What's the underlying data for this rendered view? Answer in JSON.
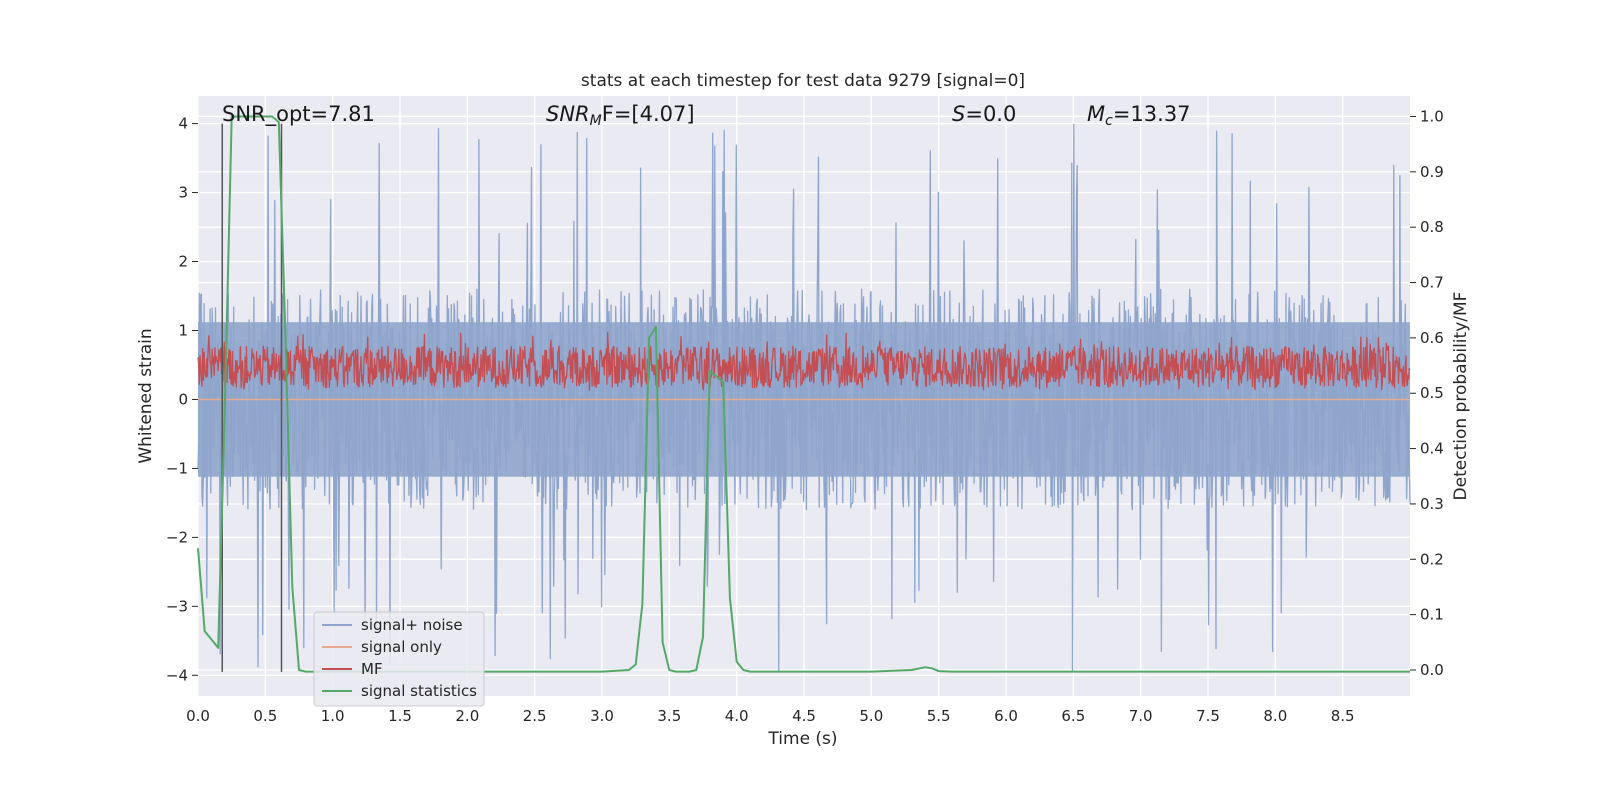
{
  "chart_data": {
    "type": "line",
    "title": "stats at each timestep for test data 9279 [signal=0]",
    "xlabel": "Time (s)",
    "ylabel": "Whitened strain",
    "y2label": "Detection probability/MF",
    "xlim": [
      0.0,
      9.0
    ],
    "ylim": [
      -4.3,
      4.4
    ],
    "y2lim": [
      -0.047,
      1.037
    ],
    "grid": true,
    "xticks": [
      "0.0",
      "0.5",
      "1.0",
      "1.5",
      "2.0",
      "2.5",
      "3.0",
      "3.5",
      "4.0",
      "4.5",
      "5.0",
      "5.5",
      "6.0",
      "6.5",
      "7.0",
      "7.5",
      "8.0",
      "8.5"
    ],
    "yticks": [
      "−4",
      "−3",
      "−2",
      "−1",
      "0",
      "1",
      "2",
      "3",
      "4"
    ],
    "y2ticks": [
      "0.0",
      "0.1",
      "0.2",
      "0.3",
      "0.4",
      "0.5",
      "0.6",
      "0.7",
      "0.8",
      "0.9",
      "1.0"
    ],
    "annotations": {
      "snr_opt": "SNR_opt=7.81",
      "snr_mf_italic": "SNR",
      "snr_mf_sub": "M",
      "snr_mf_rest": "F=[4.07]",
      "s_italic": "S",
      "s_rest": "=0.0",
      "mc_italic": "M",
      "mc_sub": "c",
      "mc_rest": "=13.37"
    },
    "vlines": {
      "x": [
        0.18,
        0.62
      ],
      "y_range": [
        -3.95,
        4.0
      ]
    },
    "legend": {
      "position": "lower-left",
      "entries": [
        "signal+ noise",
        "signal only",
        "MF",
        "signal statistics"
      ]
    },
    "series": [
      {
        "name": "signal+ noise",
        "axis": "left",
        "color": "#8fa5cc",
        "kind": "noise",
        "center": 0.0,
        "typical_min": -1.6,
        "typical_max": 1.6,
        "extreme_min": -3.95,
        "extreme_max": 4.0,
        "n_points": 1800
      },
      {
        "name": "signal only",
        "axis": "left",
        "color": "#e8a98c",
        "kind": "flat",
        "x": [
          0.0,
          9.0
        ],
        "y": [
          0.0,
          0.0
        ]
      },
      {
        "name": "MF",
        "axis": "right",
        "color": "#c44e52",
        "kind": "noise",
        "center": 0.535,
        "typical_min": 0.51,
        "typical_max": 0.585,
        "extreme_min": 0.505,
        "extreme_max": 0.61,
        "n_points": 1800
      },
      {
        "name": "signal statistics",
        "axis": "right",
        "color": "#55a868",
        "kind": "line",
        "x": [
          0.0,
          0.05,
          0.1,
          0.15,
          0.2,
          0.25,
          0.3,
          0.35,
          0.4,
          0.45,
          0.5,
          0.55,
          0.6,
          0.65,
          0.7,
          0.75,
          0.8,
          0.85,
          0.9,
          1.0,
          1.5,
          2.0,
          2.5,
          3.0,
          3.2,
          3.25,
          3.3,
          3.35,
          3.4,
          3.45,
          3.5,
          3.55,
          3.6,
          3.65,
          3.7,
          3.75,
          3.8,
          3.85,
          3.9,
          3.95,
          4.0,
          4.05,
          4.1,
          4.5,
          5.0,
          5.3,
          5.4,
          5.45,
          5.5,
          5.6,
          6.0,
          7.0,
          8.0,
          9.0
        ],
        "y": [
          0.22,
          0.07,
          0.055,
          0.04,
          0.48,
          1.0,
          1.0,
          1.0,
          1.0,
          1.0,
          1.0,
          1.0,
          0.99,
          0.6,
          0.15,
          0.0,
          -0.003,
          -0.003,
          -0.003,
          -0.003,
          -0.003,
          -0.003,
          -0.003,
          -0.003,
          0.0,
          0.01,
          0.12,
          0.6,
          0.62,
          0.05,
          0.0,
          -0.003,
          -0.003,
          -0.003,
          0.0,
          0.06,
          0.54,
          0.53,
          0.52,
          0.13,
          0.015,
          0.0,
          -0.003,
          -0.003,
          -0.003,
          0.0,
          0.005,
          0.003,
          -0.002,
          -0.003,
          -0.003,
          -0.003,
          -0.003,
          -0.003
        ]
      }
    ]
  }
}
